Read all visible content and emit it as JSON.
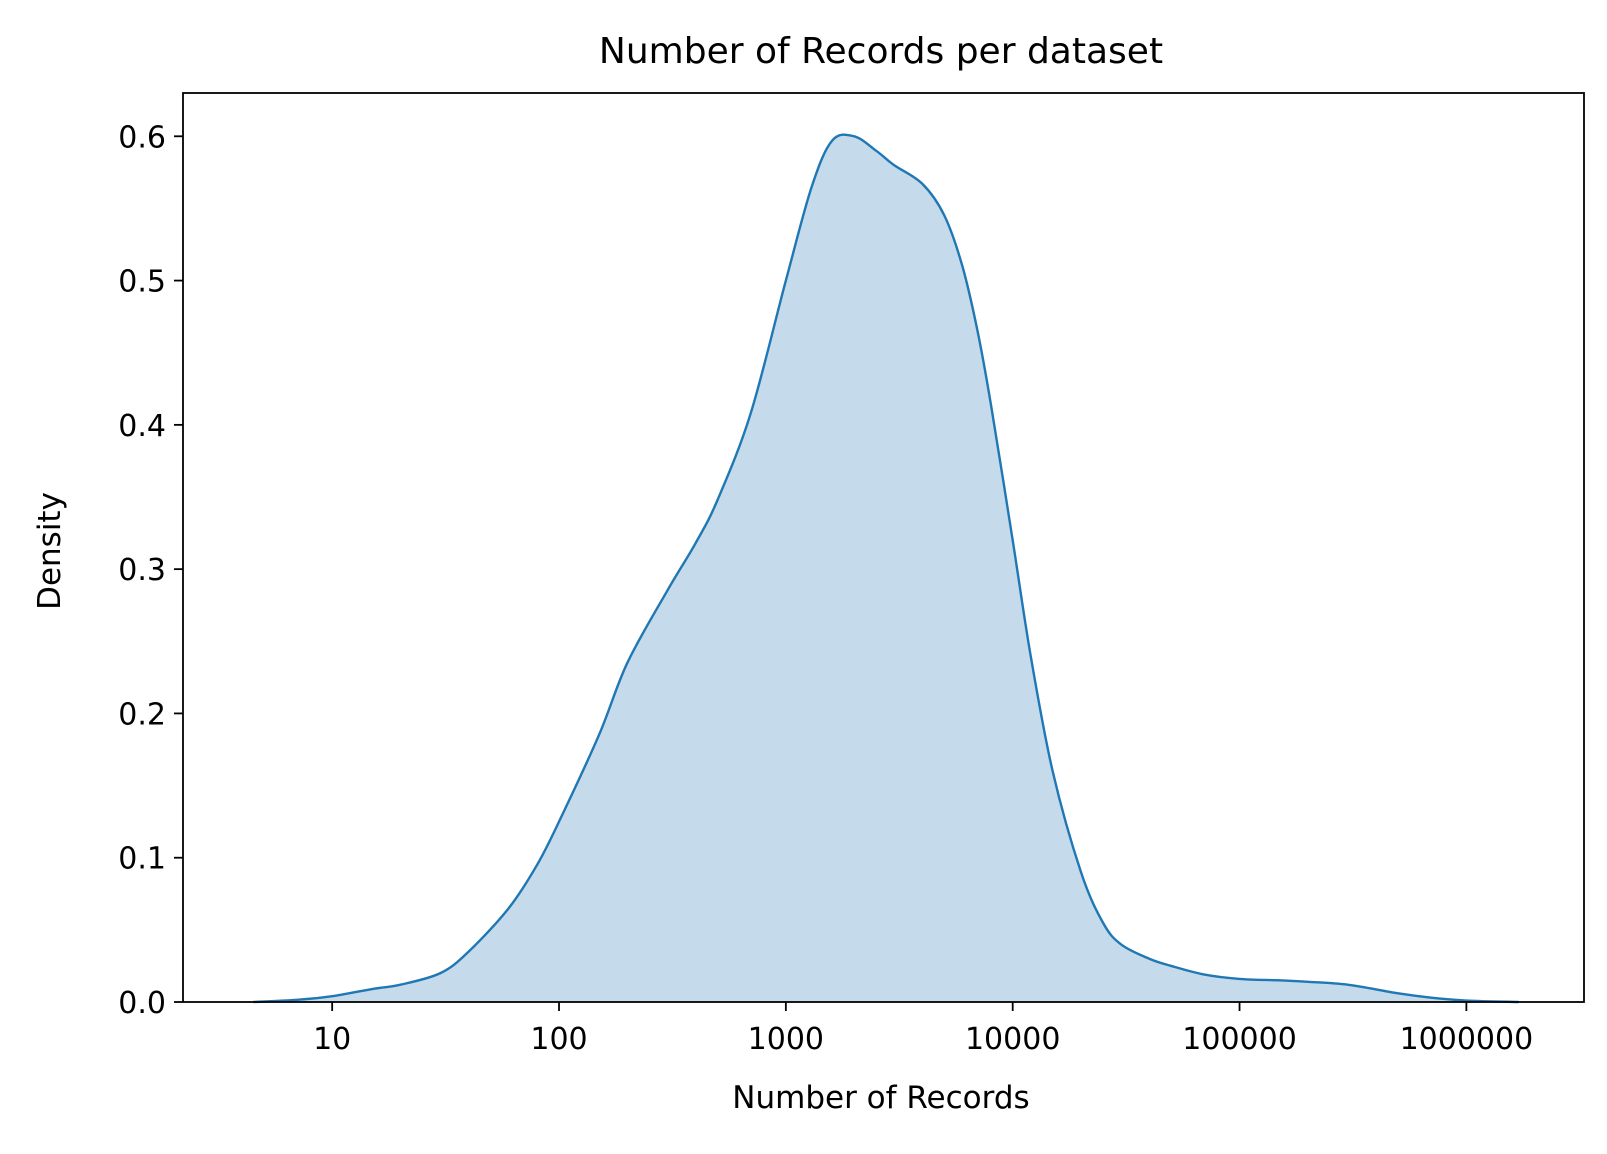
{
  "chart_data": {
    "type": "area",
    "title": "Number of Records per dataset",
    "xlabel": "Number of Records",
    "ylabel": "Density",
    "x_scale": "log",
    "xlim": [
      2.2,
      3300000
    ],
    "ylim": [
      0,
      0.63
    ],
    "xticks": [
      10,
      100,
      1000,
      10000,
      100000,
      1000000
    ],
    "xtick_labels": [
      "10",
      "100",
      "1000",
      "10000",
      "100000",
      "1000000"
    ],
    "yticks": [
      0.0,
      0.1,
      0.2,
      0.3,
      0.4,
      0.5,
      0.6
    ],
    "ytick_labels": [
      "0.0",
      "0.1",
      "0.2",
      "0.3",
      "0.4",
      "0.5",
      "0.6"
    ],
    "grid": false,
    "legend": "none",
    "colors": {
      "line": "#1f77b4",
      "fill": "#c5dbec"
    },
    "series": [
      {
        "x": [
          4.5,
          7,
          10,
          15,
          20,
          30,
          40,
          60,
          80,
          100,
          150,
          200,
          300,
          400,
          500,
          700,
          1000,
          1300,
          1600,
          2000,
          2500,
          3000,
          4000,
          5000,
          6000,
          7000,
          8000,
          10000,
          12000,
          15000,
          20000,
          25000,
          30000,
          40000,
          50000,
          70000,
          100000,
          150000,
          200000,
          300000,
          500000,
          700000,
          1000000,
          1700000
        ],
        "y": [
          0.0,
          0.0015,
          0.004,
          0.009,
          0.012,
          0.02,
          0.035,
          0.065,
          0.095,
          0.125,
          0.185,
          0.235,
          0.285,
          0.318,
          0.348,
          0.408,
          0.5,
          0.565,
          0.597,
          0.6,
          0.59,
          0.58,
          0.567,
          0.545,
          0.51,
          0.465,
          0.415,
          0.32,
          0.24,
          0.16,
          0.09,
          0.055,
          0.04,
          0.03,
          0.025,
          0.019,
          0.016,
          0.015,
          0.014,
          0.012,
          0.006,
          0.003,
          0.001,
          0.0
        ]
      }
    ]
  }
}
